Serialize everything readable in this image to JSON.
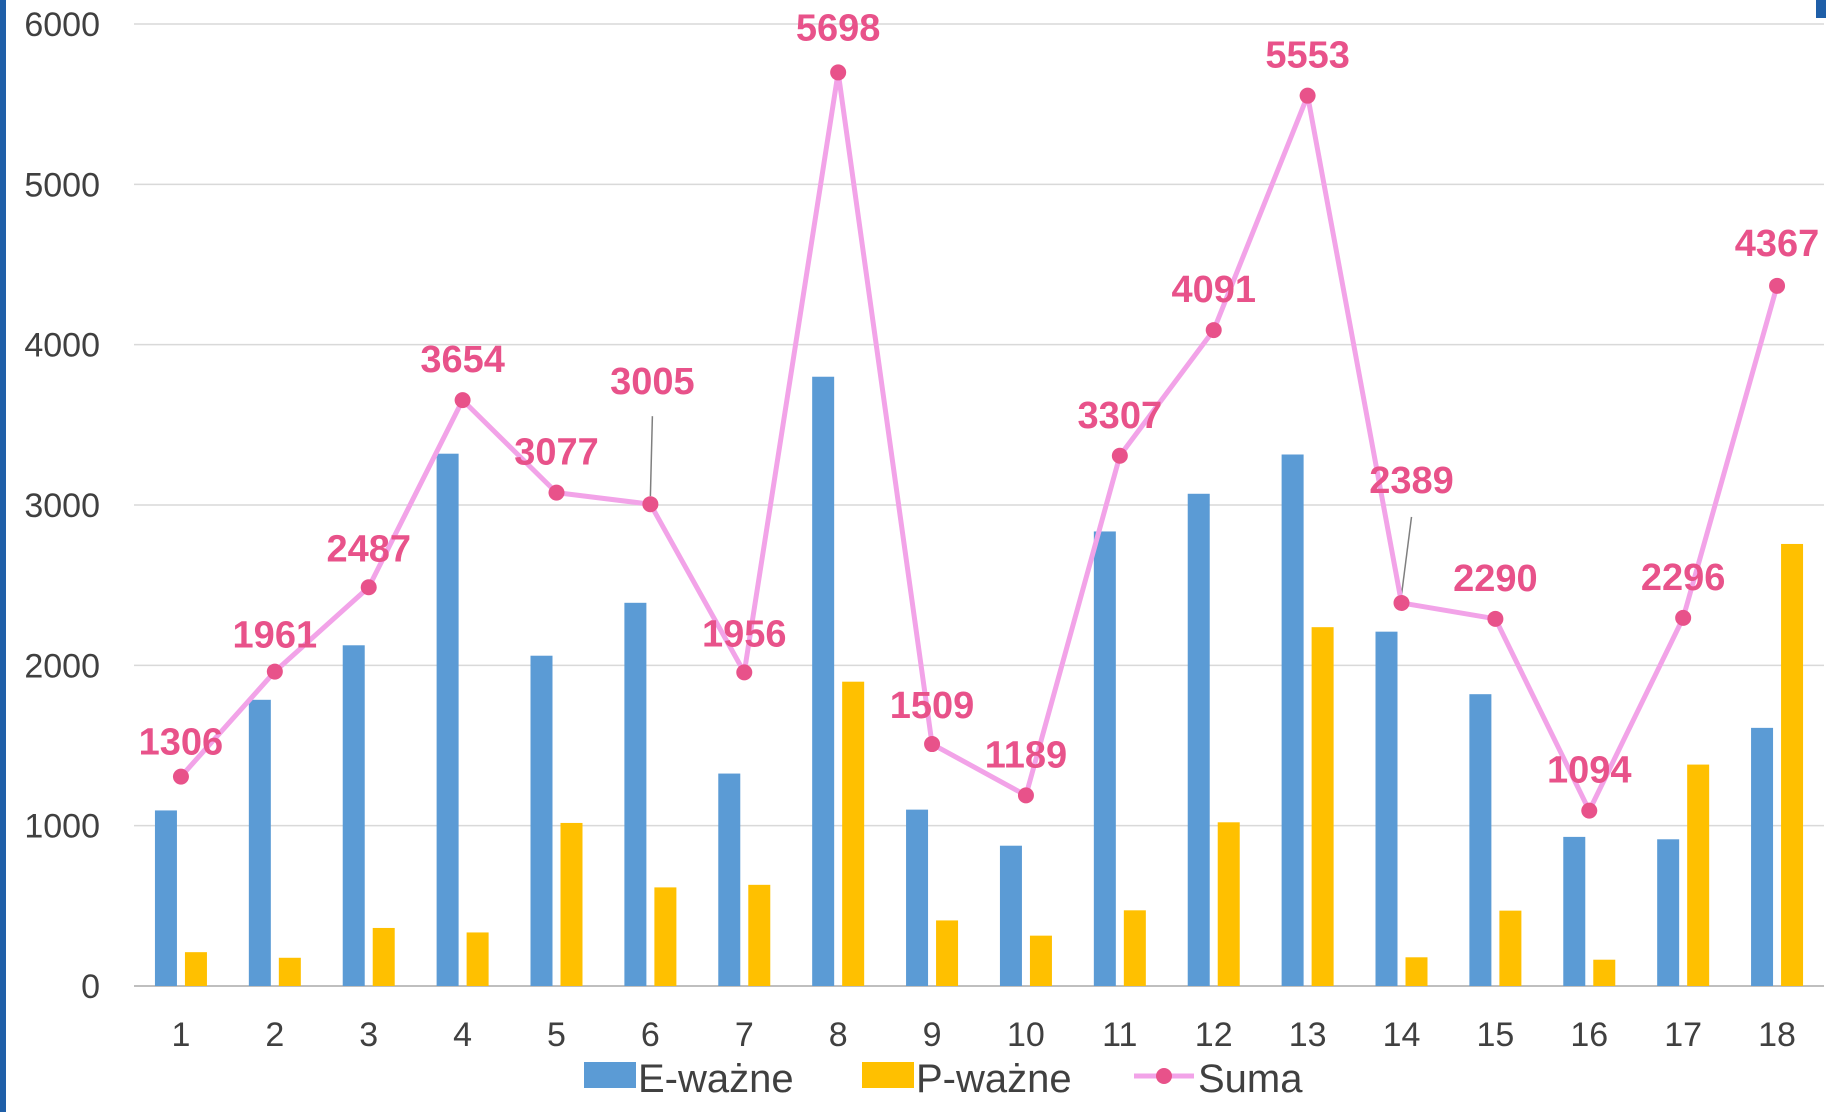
{
  "chart_data": {
    "type": "bar",
    "categories": [
      "1",
      "2",
      "3",
      "4",
      "5",
      "6",
      "7",
      "8",
      "9",
      "10",
      "11",
      "12",
      "13",
      "14",
      "15",
      "16",
      "17",
      "18"
    ],
    "series": [
      {
        "name": "E-ważne",
        "type": "bar",
        "color": "#5b9bd5",
        "values": [
          1095,
          1785,
          2125,
          3320,
          2060,
          2390,
          1325,
          3800,
          1100,
          875,
          2835,
          3070,
          3315,
          2210,
          1820,
          930,
          915,
          1610
        ]
      },
      {
        "name": "P-ważne",
        "type": "bar",
        "color": "#ffc000",
        "values": [
          211,
          176,
          362,
          334,
          1017,
          615,
          631,
          1898,
          409,
          314,
          472,
          1021,
          2238,
          179,
          470,
          164,
          1381,
          2757
        ]
      },
      {
        "name": "Suma",
        "type": "line",
        "color": "#f2a3e8",
        "marker_color": "#e8528a",
        "values": [
          1306,
          1961,
          2487,
          3654,
          3077,
          3005,
          1956,
          5698,
          1509,
          1189,
          3307,
          4091,
          5553,
          2389,
          2290,
          1094,
          2296,
          4367
        ]
      }
    ],
    "data_labels": [
      "1306",
      "1961",
      "2487",
      "3654",
      "3077",
      "3005",
      "1956",
      "5698",
      "1509",
      "1189",
      "3307",
      "4091",
      "5553",
      "2389",
      "2290",
      "1094",
      "2296",
      "4367"
    ],
    "y_ticks": [
      "0",
      "1000",
      "2000",
      "3000",
      "4000",
      "5000",
      "6000"
    ],
    "ylim": [
      0,
      6000
    ],
    "grid": true,
    "legend_position": "bottom",
    "title": "",
    "xlabel": "",
    "ylabel": ""
  }
}
